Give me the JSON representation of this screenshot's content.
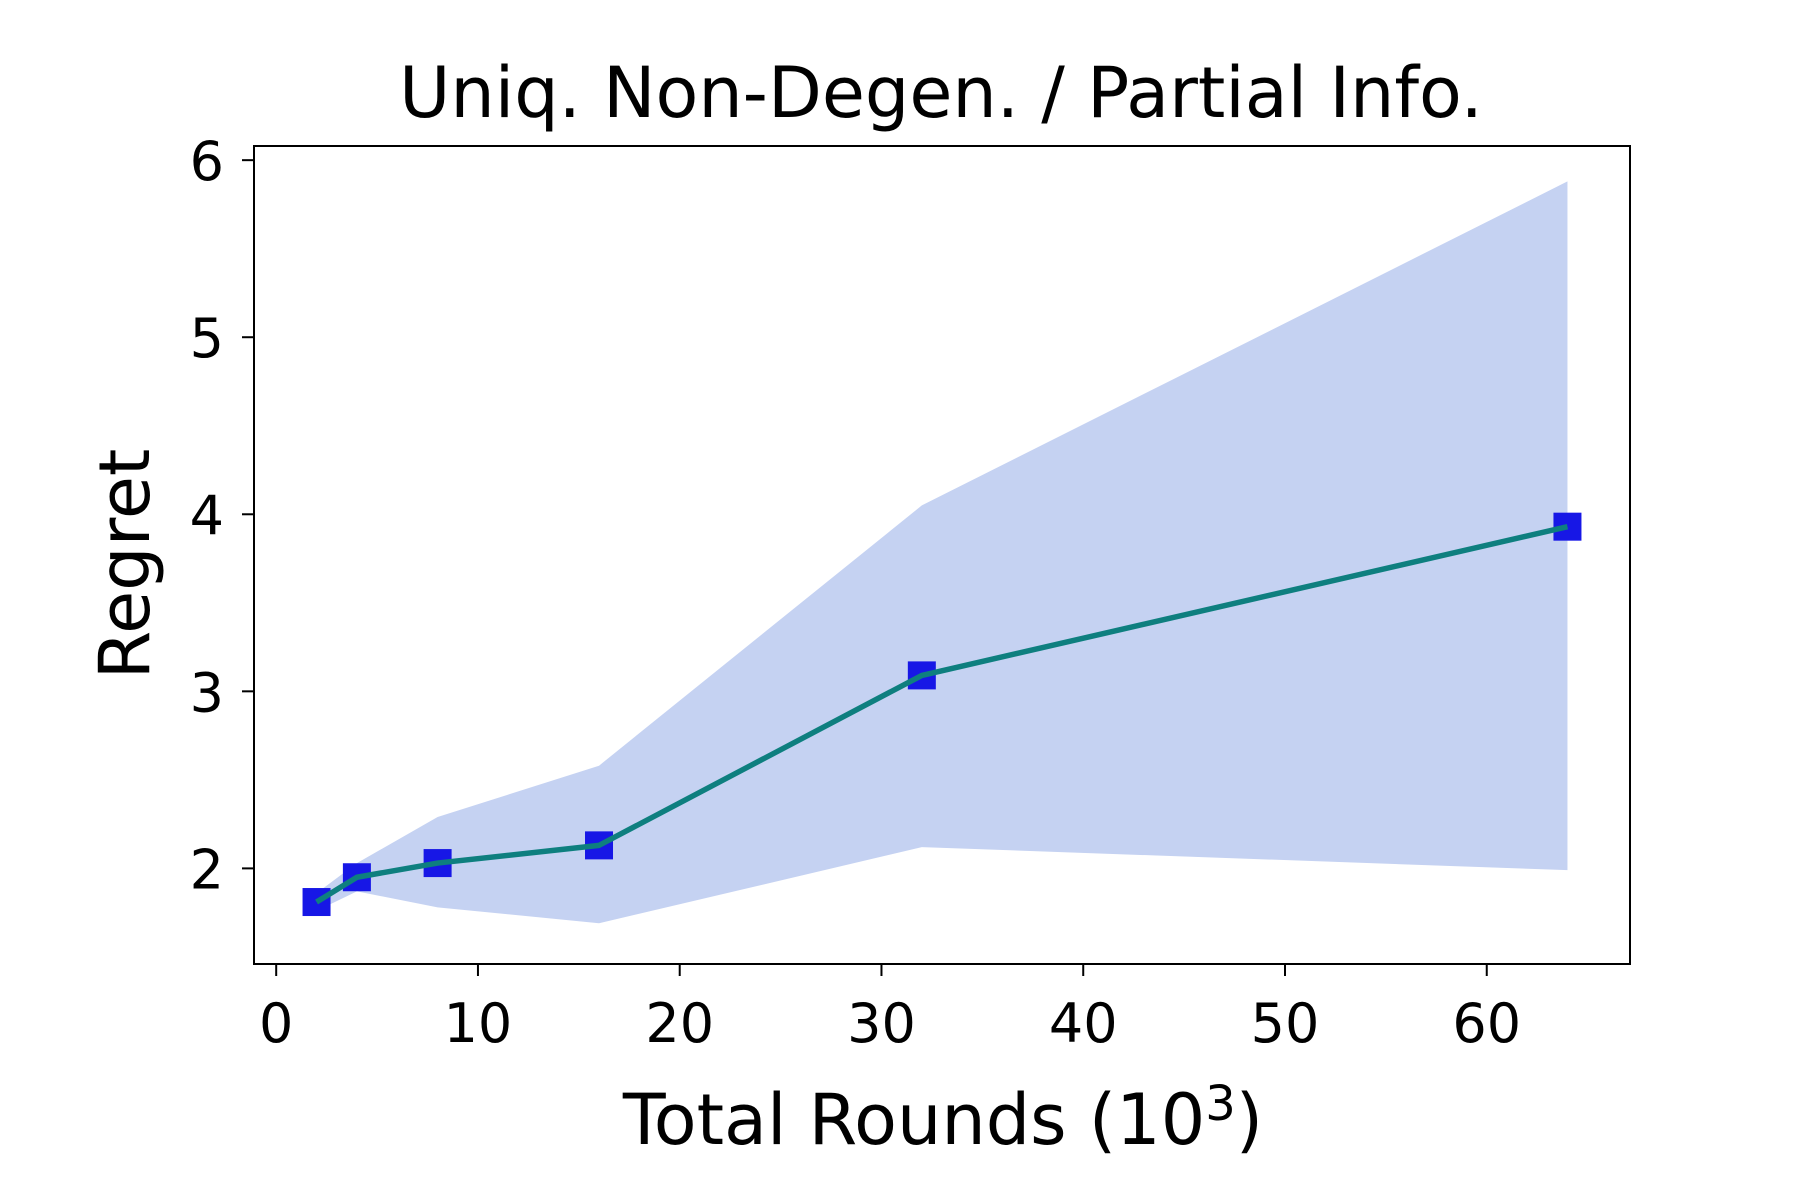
{
  "chart_data": {
    "type": "line",
    "title": "Uniq. Non-Degen. / Partial Info.",
    "xlabel": "Total Rounds (10",
    "xlabel_sup": "3",
    "xlabel_end": ")",
    "ylabel": "Regret",
    "xlim": [
      -1.1,
      67.1
    ],
    "ylim": [
      1.46,
      6.08
    ],
    "xticks": [
      0,
      10,
      20,
      30,
      40,
      50,
      60
    ],
    "yticks": [
      2,
      3,
      4,
      5,
      6
    ],
    "grid": false,
    "x": [
      2,
      4,
      8,
      16,
      32,
      64
    ],
    "series": [
      {
        "values": [
          1.81,
          1.95,
          2.03,
          2.13,
          3.09,
          3.93
        ],
        "lower": [
          1.76,
          1.87,
          1.78,
          1.69,
          2.12,
          1.99
        ],
        "upper": [
          1.86,
          2.03,
          2.29,
          2.58,
          4.05,
          5.88
        ]
      }
    ],
    "colors": {
      "line": "#0e7f7f",
      "marker": "#1717e6",
      "band": "#c5d2f2",
      "axes": "#000000"
    }
  }
}
